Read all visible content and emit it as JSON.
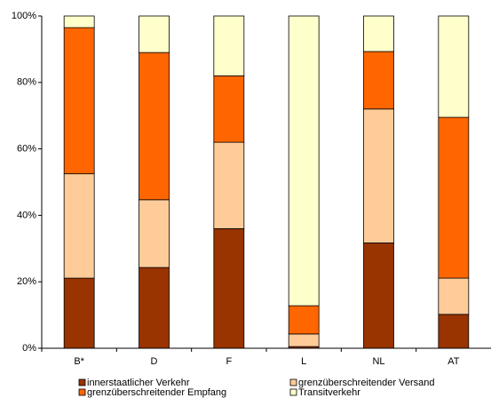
{
  "chart_data": {
    "type": "stacked-bar",
    "categories": [
      "B*",
      "D",
      "F",
      "L",
      "NL",
      "AT"
    ],
    "series": [
      {
        "name": "innerstaatlicher Verkehr",
        "color": "#993300",
        "values": [
          21.1,
          24.3,
          36,
          0.5,
          31.7,
          10.2
        ]
      },
      {
        "name": "grenzüberschreitender Versand",
        "color": "#ffcc99",
        "values": [
          31.4,
          20.4,
          26,
          3.8,
          40.3,
          10.9
        ]
      },
      {
        "name": "grenzüberschreitender Empfang",
        "color": "#ff6600",
        "values": [
          44,
          44.3,
          20,
          8.5,
          17.3,
          48.4
        ]
      },
      {
        "name": "Transitverkehr",
        "color": "#ffffcc",
        "values": [
          3.5,
          11,
          18,
          87.2,
          10.7,
          30.5
        ]
      }
    ],
    "ylim": [
      0,
      100
    ],
    "yticks": [
      {
        "value": 0,
        "label": "0%"
      },
      {
        "value": 20,
        "label": "20%"
      },
      {
        "value": 40,
        "label": "40%"
      },
      {
        "value": 60,
        "label": "60%"
      },
      {
        "value": 80,
        "label": "80%"
      },
      {
        "value": 100,
        "label": "100%"
      }
    ]
  }
}
